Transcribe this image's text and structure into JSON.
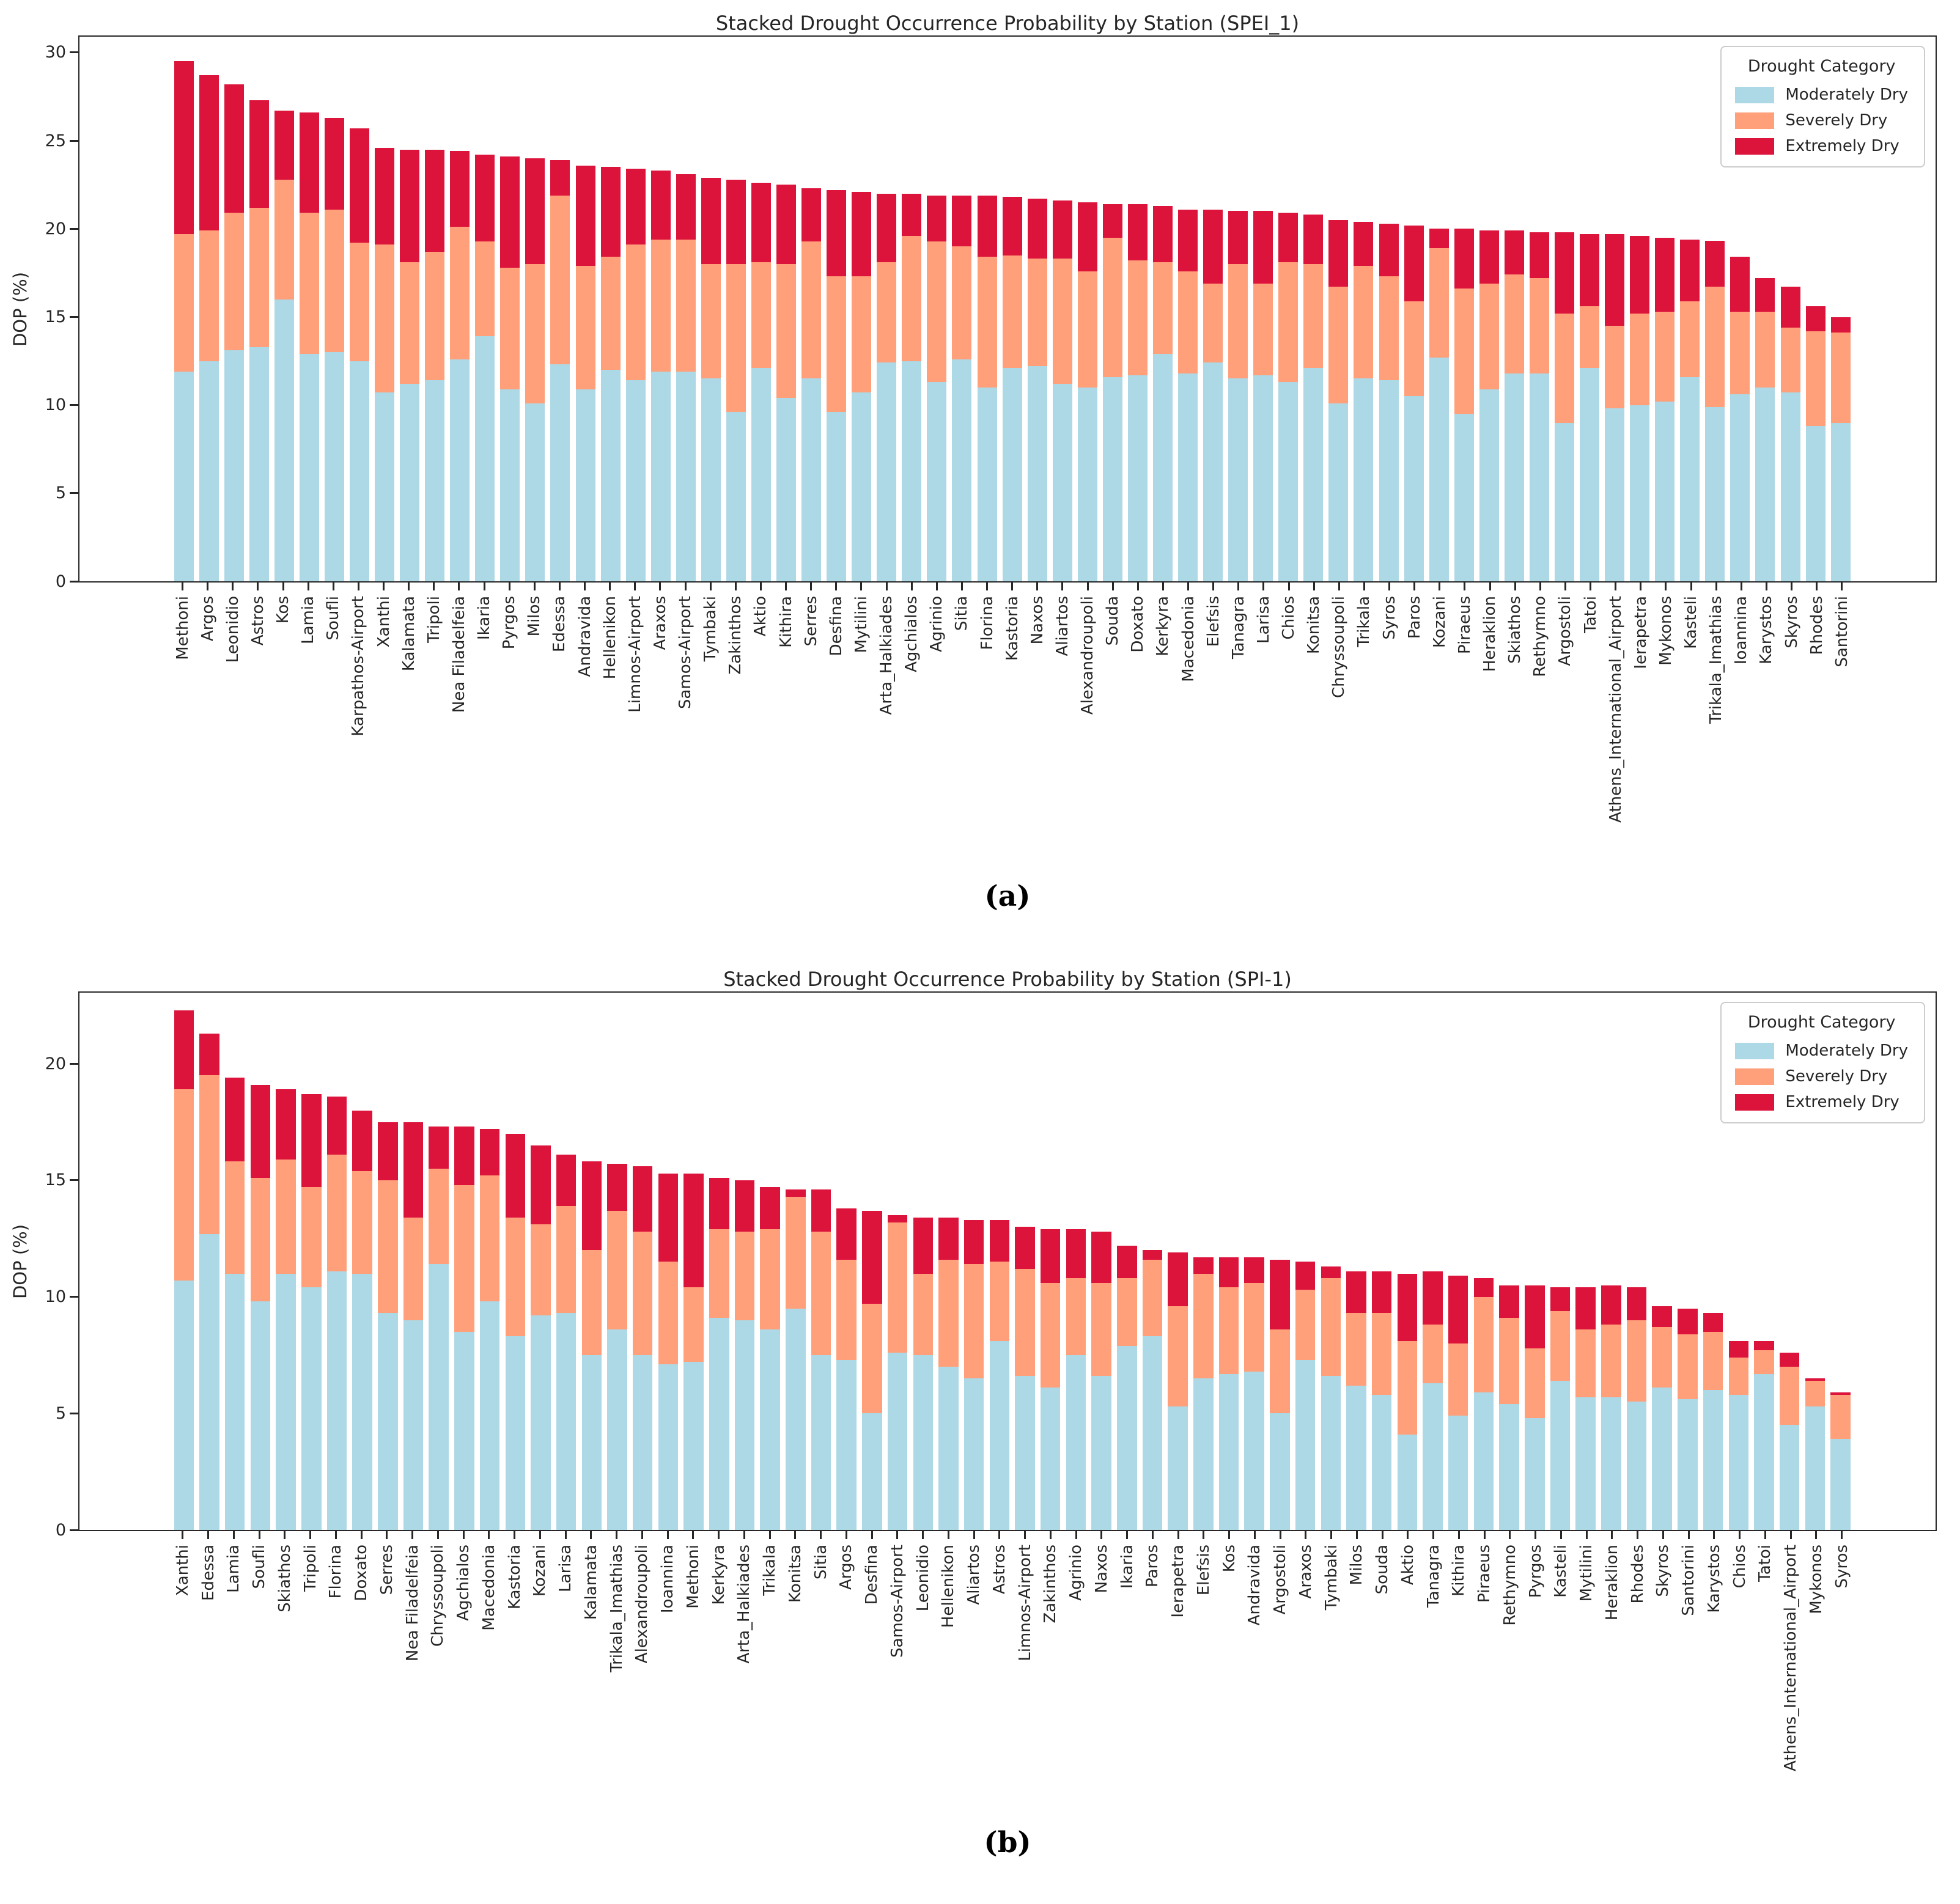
{
  "page": {
    "background": "#ffffff"
  },
  "colors": {
    "moderately_dry": "#ADD8E6",
    "severely_dry": "#FFA07A",
    "extremely_dry": "#DC143C",
    "spine": "#262626",
    "legend_border": "#cccccc"
  },
  "chart_data": [
    {
      "id": "a",
      "type": "bar",
      "stacked": true,
      "title": "Stacked Drought Occurrence Probability by Station (SPEI_1)",
      "xlabel": "",
      "ylabel": "DOP (%)",
      "ylim": [
        0,
        30.9
      ],
      "yticks": [
        0,
        5,
        10,
        15,
        20,
        25,
        30
      ],
      "grid": false,
      "legend": {
        "title": "Drought Category",
        "position": "upper right"
      },
      "caption": "(a)",
      "categories": [
        "Methoni",
        "Argos",
        "Leonidio",
        "Astros",
        "Kos",
        "Lamia",
        "Soufli",
        "Karpathos-Airport",
        "Xanthi",
        "Kalamata",
        "Tripoli",
        "Nea Filadelfeia",
        "Ikaria",
        "Pyrgos",
        "Milos",
        "Edessa",
        "Andravida",
        "Hellenikon",
        "Limnos-Airport",
        "Araxos",
        "Samos-Airport",
        "Tymbaki",
        "Zakinthos",
        "Aktio",
        "Kithira",
        "Serres",
        "Desfina",
        "Mytilini",
        "Arta_Halkiades",
        "Agchialos",
        "Agrinio",
        "Sitia",
        "Florina",
        "Kastoria",
        "Naxos",
        "Aliartos",
        "Alexandroupoli",
        "Souda",
        "Doxato",
        "Kerkyra",
        "Macedonia",
        "Elefsis",
        "Tanagra",
        "Larisa",
        "Chios",
        "Konitsa",
        "Chryssoupoli",
        "Trikala",
        "Syros",
        "Paros",
        "Kozani",
        "Piraeus",
        "Heraklion",
        "Skiathos",
        "Rethymno",
        "Argostoli",
        "Tatoi",
        "Athens_International_Airport",
        "Ierapetra",
        "Mykonos",
        "Kasteli",
        "Trikala_Imathias",
        "Ioannina",
        "Karystos",
        "Skyros",
        "Rhodes",
        "Santorini"
      ],
      "series": [
        {
          "name": "Moderately Dry",
          "color": "#ADD8E6",
          "values": [
            11.9,
            12.5,
            13.1,
            13.3,
            16.0,
            12.9,
            13.0,
            12.5,
            10.7,
            11.2,
            11.4,
            12.6,
            13.9,
            10.9,
            10.1,
            12.3,
            10.9,
            12.0,
            11.4,
            11.9,
            11.9,
            11.5,
            9.6,
            12.1,
            10.4,
            11.5,
            9.6,
            10.7,
            12.4,
            12.5,
            11.3,
            12.6,
            11.0,
            12.1,
            12.2,
            11.2,
            11.0,
            11.6,
            11.7,
            12.9,
            11.8,
            12.4,
            11.5,
            11.7,
            11.3,
            12.1,
            10.1,
            11.5,
            11.4,
            10.5,
            12.7,
            9.5,
            10.9,
            11.8,
            11.8,
            9.0,
            12.1,
            9.8,
            10.0,
            10.2,
            11.6,
            9.9,
            10.6,
            11.0,
            10.7,
            8.8,
            9.0
          ]
        },
        {
          "name": "Severely Dry",
          "color": "#FFA07A",
          "values": [
            7.8,
            7.4,
            7.8,
            7.9,
            6.8,
            8.0,
            8.1,
            6.7,
            8.4,
            6.9,
            7.3,
            7.5,
            5.4,
            6.9,
            7.9,
            9.6,
            7.0,
            6.4,
            7.7,
            7.5,
            7.5,
            6.5,
            8.4,
            6.0,
            7.6,
            7.8,
            7.7,
            6.6,
            5.7,
            7.1,
            8.0,
            6.4,
            7.4,
            6.4,
            6.1,
            7.1,
            6.6,
            7.9,
            6.5,
            5.2,
            5.8,
            4.5,
            6.5,
            5.2,
            6.8,
            5.9,
            6.6,
            6.4,
            5.9,
            5.4,
            6.2,
            7.1,
            6.0,
            5.6,
            5.4,
            6.2,
            3.5,
            4.7,
            5.2,
            5.1,
            4.3,
            6.8,
            4.7,
            4.3,
            3.7,
            5.4,
            5.1
          ]
        },
        {
          "name": "Extremely Dry",
          "color": "#DC143C",
          "values": [
            9.8,
            8.8,
            7.3,
            6.1,
            3.9,
            5.7,
            5.2,
            6.5,
            5.5,
            6.4,
            5.8,
            4.3,
            4.9,
            6.3,
            6.0,
            2.0,
            5.7,
            5.1,
            4.3,
            3.9,
            3.7,
            4.9,
            4.8,
            4.5,
            4.5,
            3.0,
            4.9,
            4.8,
            3.9,
            2.4,
            2.6,
            2.9,
            3.5,
            3.3,
            3.4,
            3.3,
            3.9,
            1.9,
            3.2,
            3.2,
            3.5,
            4.2,
            3.0,
            4.1,
            2.8,
            2.8,
            3.8,
            2.5,
            3.0,
            4.3,
            1.1,
            3.4,
            3.0,
            2.5,
            2.6,
            4.6,
            4.1,
            5.2,
            4.4,
            4.2,
            3.5,
            2.6,
            3.1,
            1.9,
            2.3,
            1.4,
            0.9
          ]
        }
      ]
    },
    {
      "id": "b",
      "type": "bar",
      "stacked": true,
      "title": "Stacked Drought Occurrence Probability by Station (SPI-1)",
      "xlabel": "",
      "ylabel": "DOP (%)",
      "ylim": [
        0,
        23.05
      ],
      "yticks": [
        0,
        5,
        10,
        15,
        20
      ],
      "grid": false,
      "legend": {
        "title": "Drought Category",
        "position": "upper right"
      },
      "caption": "(b)",
      "categories": [
        "Xanthi",
        "Edessa",
        "Lamia",
        "Soufli",
        "Skiathos",
        "Tripoli",
        "Florina",
        "Doxato",
        "Serres",
        "Nea Filadelfeia",
        "Chryssoupoli",
        "Agchialos",
        "Macedonia",
        "Kastoria",
        "Kozani",
        "Larisa",
        "Kalamata",
        "Trikala_Imathias",
        "Alexandroupoli",
        "Ioannina",
        "Methoni",
        "Kerkyra",
        "Arta_Halkiades",
        "Trikala",
        "Konitsa",
        "Sitia",
        "Argos",
        "Desfina",
        "Samos-Airport",
        "Leonidio",
        "Hellenikon",
        "Aliartos",
        "Astros",
        "Limnos-Airport",
        "Zakinthos",
        "Agrinio",
        "Naxos",
        "Ikaria",
        "Paros",
        "Ierapetra",
        "Elefsis",
        "Kos",
        "Andravida",
        "Argostoli",
        "Araxos",
        "Tymbaki",
        "Milos",
        "Souda",
        "Aktio",
        "Tanagra",
        "Kithira",
        "Piraeus",
        "Rethymno",
        "Pyrgos",
        "Kasteli",
        "Mytilini",
        "Heraklion",
        "Rhodes",
        "Skyros",
        "Santorini",
        "Karystos",
        "Chios",
        "Tatoi",
        "Athens_International_Airport",
        "Mykonos",
        "Syros"
      ],
      "series": [
        {
          "name": "Moderately Dry",
          "color": "#ADD8E6",
          "values": [
            10.7,
            12.7,
            11.0,
            9.8,
            11.0,
            10.4,
            11.1,
            11.0,
            9.3,
            9.0,
            11.4,
            8.5,
            9.8,
            8.3,
            9.2,
            9.3,
            7.5,
            8.6,
            7.5,
            7.1,
            7.2,
            9.1,
            9.0,
            8.6,
            9.5,
            7.5,
            7.3,
            5.0,
            7.6,
            7.5,
            7.0,
            6.5,
            8.1,
            6.6,
            6.1,
            7.5,
            6.6,
            7.9,
            8.3,
            5.3,
            6.5,
            6.7,
            6.8,
            5.0,
            7.3,
            6.6,
            6.2,
            5.8,
            4.1,
            6.3,
            4.9,
            5.9,
            5.4,
            4.8,
            6.4,
            5.7,
            5.7,
            5.5,
            6.1,
            5.6,
            6.0,
            5.8,
            6.7,
            4.5,
            5.3,
            3.9
          ]
        },
        {
          "name": "Severely Dry",
          "color": "#FFA07A",
          "values": [
            8.2,
            6.8,
            4.8,
            5.3,
            4.9,
            4.3,
            5.0,
            4.4,
            5.7,
            4.4,
            4.1,
            6.3,
            5.4,
            5.1,
            3.9,
            4.6,
            4.5,
            5.1,
            5.3,
            4.4,
            3.2,
            3.8,
            3.8,
            4.3,
            4.8,
            5.3,
            4.3,
            4.7,
            5.6,
            3.5,
            4.6,
            4.9,
            3.4,
            4.6,
            4.5,
            3.3,
            4.0,
            2.9,
            3.3,
            4.3,
            4.5,
            3.7,
            3.8,
            3.6,
            3.0,
            4.2,
            3.1,
            3.5,
            4.0,
            2.5,
            3.1,
            4.1,
            3.7,
            3.0,
            3.0,
            2.9,
            3.1,
            3.5,
            2.6,
            2.8,
            2.5,
            1.6,
            1.0,
            2.5,
            1.1,
            1.9
          ]
        },
        {
          "name": "Extremely Dry",
          "color": "#DC143C",
          "values": [
            3.4,
            1.8,
            3.6,
            4.0,
            3.0,
            4.0,
            2.5,
            2.6,
            2.5,
            4.1,
            1.8,
            2.5,
            2.0,
            3.6,
            3.4,
            2.2,
            3.8,
            2.0,
            2.8,
            3.8,
            4.9,
            2.2,
            2.2,
            1.8,
            0.3,
            1.8,
            2.2,
            4.0,
            0.3,
            2.4,
            1.8,
            1.9,
            1.8,
            1.8,
            2.3,
            2.1,
            2.2,
            1.4,
            0.4,
            2.3,
            0.7,
            1.3,
            1.1,
            3.0,
            1.2,
            0.5,
            1.8,
            1.8,
            2.9,
            2.3,
            2.9,
            0.8,
            1.4,
            2.7,
            1.0,
            1.8,
            1.7,
            1.4,
            0.9,
            1.1,
            0.8,
            0.7,
            0.4,
            0.6,
            0.1,
            0.1
          ]
        }
      ]
    }
  ]
}
